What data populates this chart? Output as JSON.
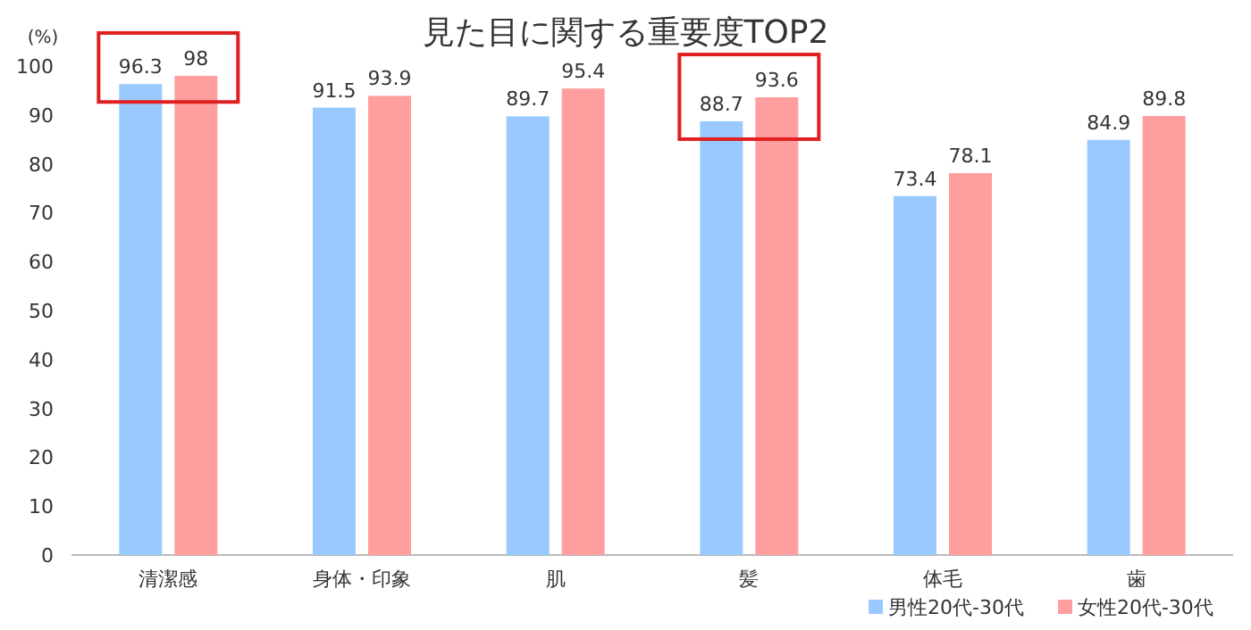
{
  "chart_data": {
    "type": "bar",
    "title": "見た目に関する重要度TOP2",
    "ylabel": "(%)",
    "categories": [
      "清潔感",
      "身体・印象",
      "肌",
      "髪",
      "体毛",
      "歯"
    ],
    "series": [
      {
        "name": "男性20代-30代",
        "color": "#99c9ff",
        "values": [
          96.3,
          91.5,
          89.7,
          88.7,
          73.4,
          84.9
        ]
      },
      {
        "name": "女性20代-30代",
        "color": "#ff9e9e",
        "values": [
          98,
          93.9,
          95.4,
          93.6,
          78.1,
          89.8
        ]
      }
    ],
    "ylim": [
      0,
      100
    ],
    "yticks": [
      0,
      10,
      20,
      30,
      40,
      50,
      60,
      70,
      80,
      90,
      100
    ],
    "data_labels": true,
    "grid": false,
    "legend": "bottom right"
  }
}
